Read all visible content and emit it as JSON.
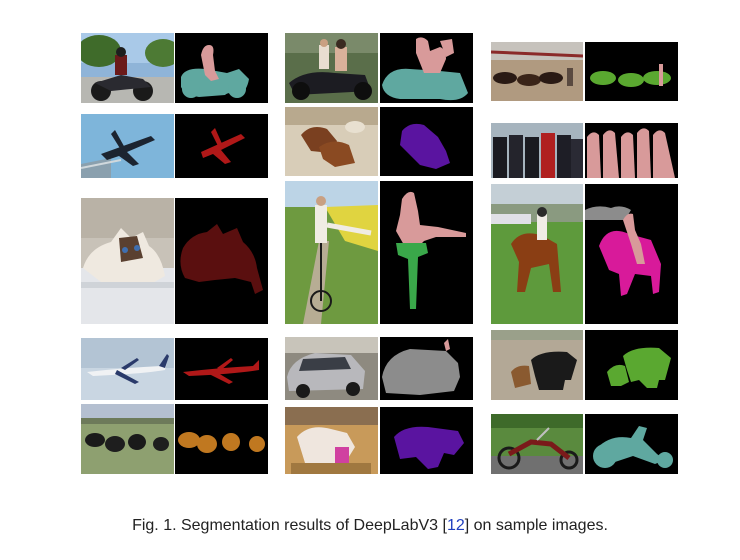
{
  "caption": {
    "text_before": "Fig. 1. Segmentation results of DeepLabV3 [",
    "ref": "12",
    "text_after": "] on sample images."
  },
  "panels": [
    {
      "name": "motorbike-rider",
      "colors": {
        "person": "#d89a9a",
        "motorbike": "#5fa8a0"
      }
    },
    {
      "name": "airplane-sky",
      "colors": {
        "airplane": "#b01818"
      }
    },
    {
      "name": "cat",
      "colors": {
        "cat": "#5a0f0f"
      }
    },
    {
      "name": "airliner",
      "colors": {
        "airplane": "#b01818"
      }
    },
    {
      "name": "sheep",
      "colors": {
        "sheep": "#c07820"
      }
    },
    {
      "name": "motorbike-family",
      "colors": {
        "person": "#d89a9a",
        "motorbike": "#5fa8a0"
      }
    },
    {
      "name": "dogs-bed",
      "colors": {
        "dog": "#5a14a0"
      }
    },
    {
      "name": "cyclist",
      "colors": {
        "person": "#d89a9a",
        "bicycle": "#3aa84a"
      }
    },
    {
      "name": "car",
      "colors": {
        "car": "#8c8c8c",
        "person": "#d89a9a"
      }
    },
    {
      "name": "dog-toy",
      "colors": {
        "dog": "#5a14a0"
      }
    },
    {
      "name": "cattle-herd",
      "colors": {
        "cow": "#5aa830",
        "person": "#d89a9a"
      }
    },
    {
      "name": "group-people",
      "colors": {
        "person": "#d89a9a"
      }
    },
    {
      "name": "horse-rider",
      "colors": {
        "person": "#d89a9a",
        "horse": "#d81a9a",
        "car": "#8c8c8c"
      }
    },
    {
      "name": "cow-calf",
      "colors": {
        "cow": "#5aa830"
      }
    },
    {
      "name": "chopper-motorbike",
      "colors": {
        "motorbike": "#5fa8a0"
      }
    }
  ]
}
